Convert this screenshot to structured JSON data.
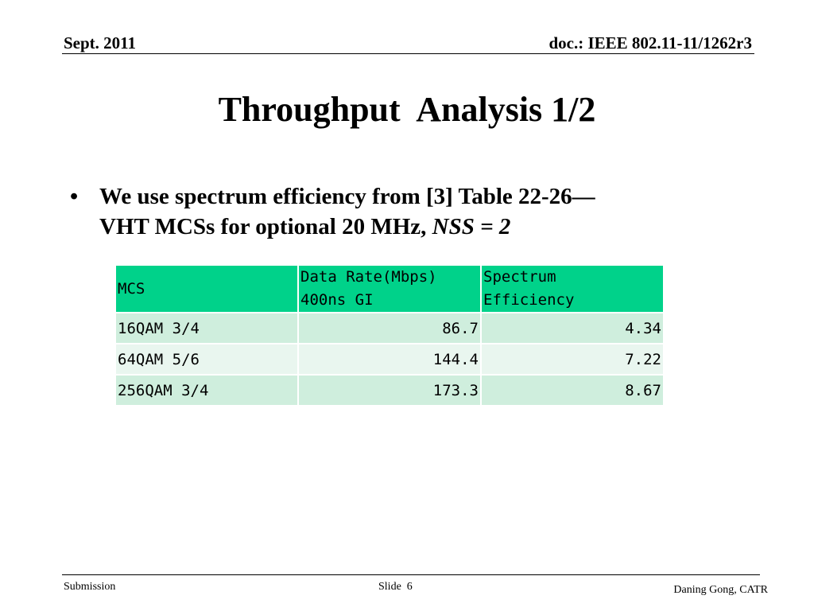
{
  "header": {
    "date": "Sept. 2011",
    "doc_id": "doc.: IEEE 802.11-11/1262r3"
  },
  "title": "Throughput  Analysis 1/2",
  "bullet": {
    "mark": "•",
    "line1": "We use spectrum efficiency from [3] Table 22-26—",
    "line2_prefix": "VHT MCSs for optional 20 MHz, ",
    "line2_italic": "NSS = 2"
  },
  "table": {
    "headers": [
      [
        "MCS"
      ],
      [
        "Data Rate(Mbps)",
        "400ns GI"
      ],
      [
        "Spectrum",
        "Efficiency"
      ]
    ],
    "rows": [
      [
        "16QAM 3/4",
        "86.7",
        "4.34"
      ],
      [
        "64QAM 5/6",
        "144.4",
        "7.22"
      ],
      [
        "256QAM 3/4",
        "173.3",
        "8.67"
      ]
    ],
    "colors": {
      "header_bg": "#00d28a",
      "row_dark": "#cfeedd",
      "row_light": "#e9f6ef"
    }
  },
  "footer": {
    "left": "Submission",
    "center": "Slide  6",
    "right": "Daning Gong, CATR"
  }
}
